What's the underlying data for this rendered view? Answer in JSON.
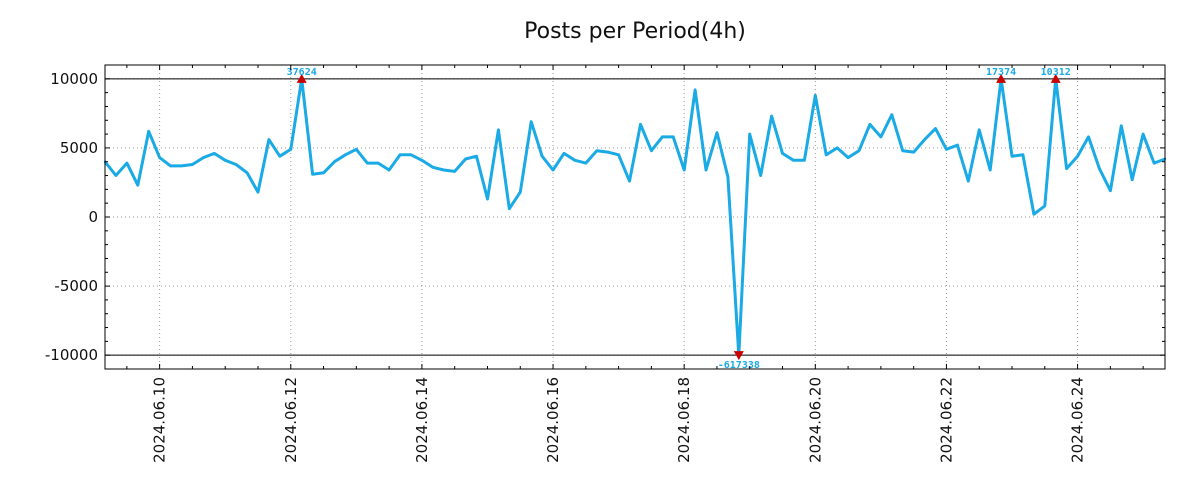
{
  "chart_data": {
    "type": "line",
    "title": "Posts per Period(4h)",
    "xlabel": "",
    "ylabel": "",
    "ylim": [
      -11000,
      11000
    ],
    "xlim": [
      0,
      97
    ],
    "y_ticks": [
      {
        "value": 10000,
        "label": "10000"
      },
      {
        "value": 5000,
        "label": "5000"
      },
      {
        "value": 0,
        "label": "0"
      },
      {
        "value": -5000,
        "label": "-5000"
      },
      {
        "value": -10000,
        "label": "-10000"
      }
    ],
    "x_ticks": [
      {
        "index": 5,
        "label": "2024.06.10"
      },
      {
        "index": 17,
        "label": "2024.06.12"
      },
      {
        "index": 29,
        "label": "2024.06.14"
      },
      {
        "index": 41,
        "label": "2024.06.16"
      },
      {
        "index": 53,
        "label": "2024.06.18"
      },
      {
        "index": 65,
        "label": "2024.06.20"
      },
      {
        "index": 77,
        "label": "2024.06.22"
      },
      {
        "index": 89,
        "label": "2024.06.24"
      }
    ],
    "reference_lines": [
      10000,
      -10000
    ],
    "grid": true,
    "series": [
      {
        "name": "Posts",
        "color": "#1aaae5",
        "values": [
          4000,
          3000,
          3900,
          2300,
          6200,
          4300,
          3700,
          3700,
          3800,
          4300,
          4600,
          4100,
          3800,
          3200,
          1800,
          5600,
          4400,
          4900,
          10000,
          3100,
          3200,
          4000,
          4500,
          4900,
          3900,
          3900,
          3400,
          4500,
          4500,
          4100,
          3600,
          3400,
          3300,
          4200,
          4400,
          1300,
          6300,
          600,
          1800,
          6900,
          4400,
          3400,
          4600,
          4100,
          3900,
          4800,
          4700,
          4500,
          2600,
          6700,
          4800,
          5800,
          5800,
          3400,
          9200,
          3400,
          6100,
          2900,
          -10000,
          6000,
          3000,
          7300,
          4600,
          4100,
          4100,
          8800,
          4500,
          5000,
          4300,
          4800,
          6700,
          5800,
          7400,
          4800,
          4700,
          5600,
          6400,
          4900,
          5200,
          2600,
          6300,
          3400,
          10000,
          4400,
          4500,
          200,
          800,
          10000,
          3500,
          4400,
          5800,
          3500,
          1900,
          6600,
          2700,
          6000,
          3900,
          4200
        ]
      }
    ],
    "annotations": [
      {
        "index": 18,
        "value": 10000,
        "label": "37624",
        "direction": "up"
      },
      {
        "index": 58,
        "value": -10000,
        "label": "-617338",
        "direction": "down"
      },
      {
        "index": 82,
        "value": 10000,
        "label": "17374",
        "direction": "up"
      },
      {
        "index": 87,
        "value": 10000,
        "label": "10312",
        "direction": "up"
      }
    ],
    "marker_color": "#cc0000",
    "annotation_color": "#1aaae5"
  }
}
